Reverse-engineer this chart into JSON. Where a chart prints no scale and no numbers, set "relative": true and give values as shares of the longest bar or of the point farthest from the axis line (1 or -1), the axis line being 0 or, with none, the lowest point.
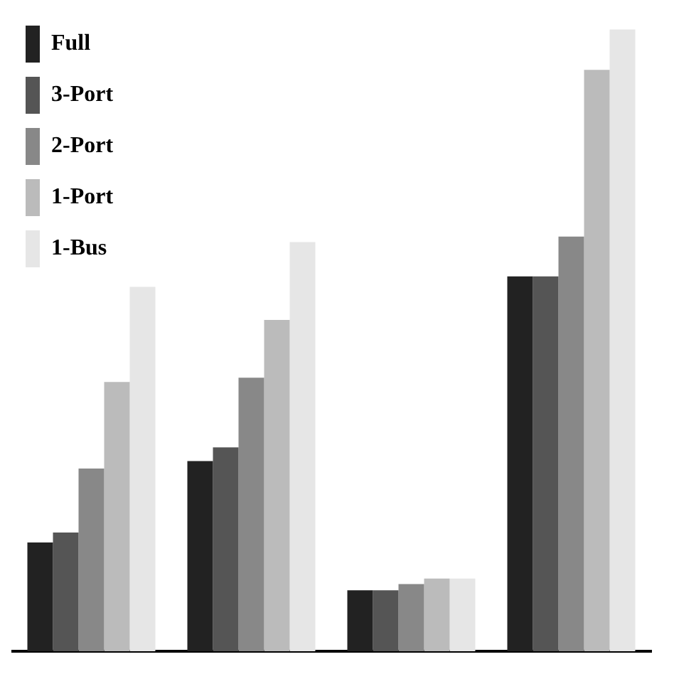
{
  "chart_data": {
    "type": "bar",
    "relative": true,
    "categories": [
      null,
      null,
      null,
      null
    ],
    "legend": "top left",
    "series": [
      {
        "name": "Full",
        "color": "#222222",
        "values": [
          0.175,
          0.306,
          0.098,
          0.603
        ]
      },
      {
        "name": "3-Port",
        "color": "#555555",
        "values": [
          0.191,
          0.328,
          0.098,
          0.603
        ]
      },
      {
        "name": "2-Port",
        "color": "#888888",
        "values": [
          0.294,
          0.44,
          0.108,
          0.667
        ]
      },
      {
        "name": "1-Port",
        "color": "#bbbbbb",
        "values": [
          0.433,
          0.533,
          0.117,
          0.935
        ]
      },
      {
        "name": "1-Bus",
        "color": "#e6e6e6",
        "values": [
          0.586,
          0.658,
          0.117,
          1
        ]
      }
    ]
  }
}
